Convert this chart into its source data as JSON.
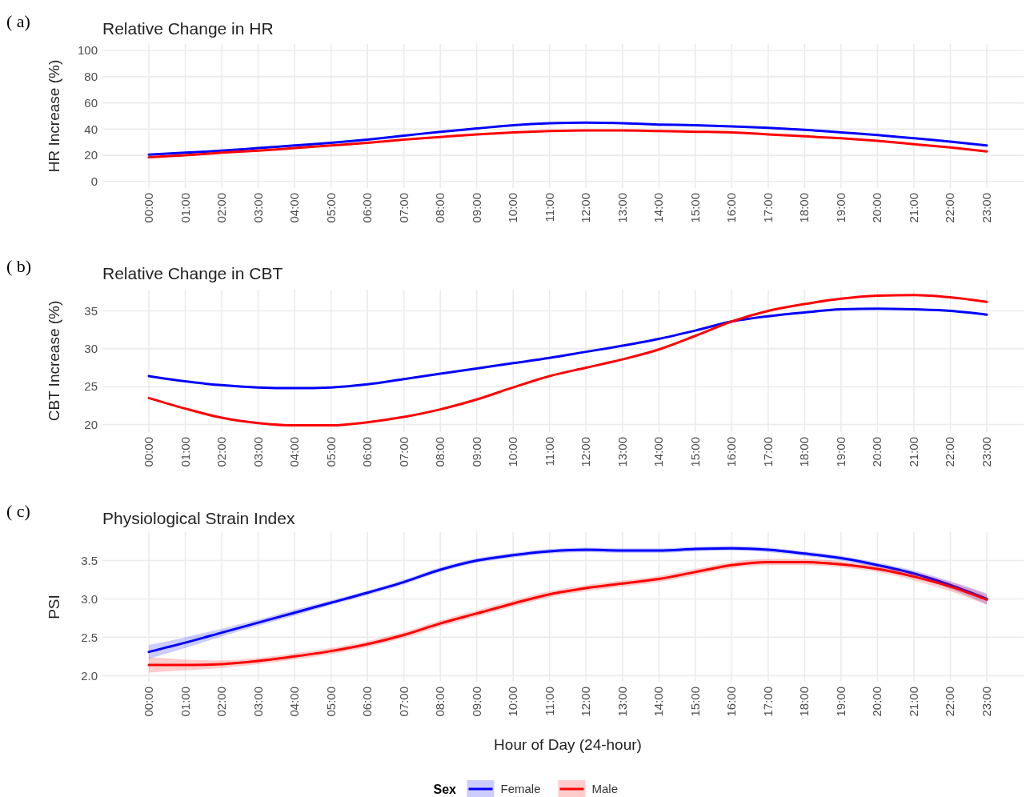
{
  "chart_data": [
    {
      "type": "line",
      "title": "Relative Change in HR",
      "ylabel": "HR Increase (%)",
      "annotations": [
        "( a)"
      ],
      "categories": [
        "00:00",
        "01:00",
        "02:00",
        "03:00",
        "04:00",
        "05:00",
        "06:00",
        "07:00",
        "08:00",
        "09:00",
        "10:00",
        "11:00",
        "12:00",
        "13:00",
        "14:00",
        "15:00",
        "16:00",
        "17:00",
        "18:00",
        "19:00",
        "20:00",
        "21:00",
        "22:00",
        "23:00"
      ],
      "ylim": [
        -5,
        105
      ],
      "yticks": [
        0,
        20,
        40,
        60,
        80,
        100
      ],
      "grid": true,
      "series": [
        {
          "color": "#0000ff",
          "values": [
            20.5,
            22,
            23.5,
            25.5,
            27.5,
            29.5,
            32,
            35,
            38,
            40.5,
            43,
            44.5,
            45,
            44.5,
            43.5,
            43,
            42,
            41,
            39.5,
            37.5,
            35.5,
            33,
            30.5,
            27.5
          ]
        },
        {
          "color": "#ff0000",
          "values": [
            18.5,
            20,
            22,
            23.5,
            25.5,
            27.5,
            29.5,
            32,
            34,
            36,
            37.5,
            38.5,
            39,
            39,
            38.5,
            38,
            37.5,
            36,
            34.5,
            33,
            31,
            28.5,
            26,
            23
          ]
        }
      ]
    },
    {
      "type": "line",
      "title": "Relative Change in CBT",
      "ylabel": "CBT Increase (%)",
      "annotations": [
        "( b)"
      ],
      "categories": [
        "00:00",
        "01:00",
        "02:00",
        "03:00",
        "04:00",
        "05:00",
        "06:00",
        "07:00",
        "08:00",
        "09:00",
        "10:00",
        "11:00",
        "12:00",
        "13:00",
        "14:00",
        "15:00",
        "16:00",
        "17:00",
        "18:00",
        "19:00",
        "20:00",
        "21:00",
        "22:00",
        "23:00"
      ],
      "ylim": [
        19,
        37.8
      ],
      "yticks": [
        20,
        25,
        30,
        35
      ],
      "grid": true,
      "series": [
        {
          "color": "#0000ff",
          "values": [
            26.4,
            25.7,
            25.2,
            24.9,
            24.8,
            24.9,
            25.3,
            26.0,
            26.7,
            27.4,
            28.1,
            28.8,
            29.6,
            30.4,
            31.3,
            32.4,
            33.6,
            34.3,
            34.8,
            35.2,
            35.3,
            35.2,
            35.0,
            34.5
          ]
        },
        {
          "color": "#ff0000",
          "values": [
            23.5,
            22.1,
            20.9,
            20.2,
            19.9,
            19.9,
            20.3,
            21.0,
            22.0,
            23.3,
            24.9,
            26.4,
            27.5,
            28.6,
            29.9,
            31.7,
            33.6,
            35.0,
            35.9,
            36.6,
            37.0,
            37.1,
            36.8,
            36.2
          ]
        }
      ]
    },
    {
      "type": "line",
      "title": "Physiological Strain Index",
      "ylabel": "PSI",
      "xlabel": "Hour of Day (24-hour)",
      "annotations": [
        "( c)"
      ],
      "legend": "bottom",
      "legend_title": "Sex",
      "categories": [
        "00:00",
        "01:00",
        "02:00",
        "03:00",
        "04:00",
        "05:00",
        "06:00",
        "07:00",
        "08:00",
        "09:00",
        "10:00",
        "11:00",
        "12:00",
        "13:00",
        "14:00",
        "15:00",
        "16:00",
        "17:00",
        "18:00",
        "19:00",
        "20:00",
        "21:00",
        "22:00",
        "23:00"
      ],
      "ylim": [
        1.92,
        3.87
      ],
      "yticks": [
        {
          "value": 2,
          "label": "2.0"
        },
        2.5,
        {
          "value": 3,
          "label": "3.0"
        },
        3.5
      ],
      "grid": true,
      "series": [
        {
          "name": "Female",
          "color": "#0000ff",
          "values": [
            2.31,
            2.43,
            2.56,
            2.69,
            2.82,
            2.95,
            3.08,
            3.22,
            3.38,
            3.5,
            3.57,
            3.62,
            3.64,
            3.63,
            3.63,
            3.65,
            3.66,
            3.64,
            3.59,
            3.53,
            3.44,
            3.33,
            3.18,
            3.0
          ],
          "lower": [
            2.22,
            2.36,
            2.51,
            2.65,
            2.78,
            2.92,
            3.05,
            3.19,
            3.35,
            3.47,
            3.54,
            3.59,
            3.61,
            3.6,
            3.6,
            3.62,
            3.63,
            3.61,
            3.56,
            3.5,
            3.41,
            3.29,
            3.13,
            2.93
          ],
          "upper": [
            2.4,
            2.5,
            2.61,
            2.73,
            2.86,
            2.98,
            3.11,
            3.25,
            3.41,
            3.53,
            3.6,
            3.65,
            3.67,
            3.66,
            3.66,
            3.68,
            3.69,
            3.67,
            3.62,
            3.56,
            3.47,
            3.37,
            3.23,
            3.07
          ]
        },
        {
          "name": "Male",
          "color": "#ff0000",
          "values": [
            2.14,
            2.14,
            2.15,
            2.19,
            2.25,
            2.32,
            2.41,
            2.53,
            2.68,
            2.81,
            2.94,
            3.06,
            3.14,
            3.2,
            3.26,
            3.35,
            3.44,
            3.48,
            3.48,
            3.45,
            3.39,
            3.29,
            3.16,
            2.99
          ],
          "lower": [
            2.04,
            2.07,
            2.1,
            2.15,
            2.21,
            2.28,
            2.37,
            2.49,
            2.64,
            2.77,
            2.9,
            3.02,
            3.1,
            3.16,
            3.22,
            3.31,
            3.4,
            3.44,
            3.44,
            3.41,
            3.35,
            3.24,
            3.1,
            2.92
          ],
          "upper": [
            2.24,
            2.21,
            2.2,
            2.23,
            2.29,
            2.36,
            2.45,
            2.57,
            2.72,
            2.85,
            2.98,
            3.1,
            3.18,
            3.24,
            3.3,
            3.39,
            3.48,
            3.52,
            3.52,
            3.49,
            3.43,
            3.34,
            3.22,
            3.06
          ]
        }
      ]
    }
  ]
}
